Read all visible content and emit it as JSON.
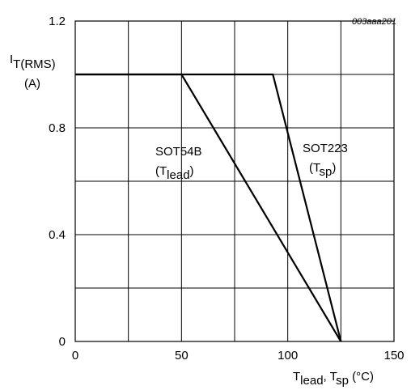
{
  "chart_data": {
    "type": "line",
    "document_code": "003aaa201",
    "ylabel": {
      "main": "I",
      "sub": "T(RMS)",
      "unit": "(A)"
    },
    "xlabel": {
      "part1_main": "T",
      "part1_sub": "lead",
      "separator": ", ",
      "part2_main": "T",
      "part2_sub": "sp",
      "unit": " (°C)"
    },
    "xlim": [
      0,
      150
    ],
    "ylim": [
      0,
      1.2
    ],
    "x_ticks": [
      0,
      50,
      100,
      150
    ],
    "x_tick_labels": [
      "0",
      "50",
      "100",
      "150"
    ],
    "y_ticks": [
      0,
      0.4,
      0.8,
      1.2
    ],
    "y_tick_labels": [
      "0",
      "0.4",
      "0.8",
      "1.2"
    ],
    "x_grid": [
      0,
      25,
      50,
      75,
      100,
      125,
      150
    ],
    "y_grid": [
      0,
      0.2,
      0.4,
      0.6,
      0.8,
      1.0,
      1.2
    ],
    "grid": true,
    "series": [
      {
        "name": "SOT54B (Tlead)",
        "label_main": "SOT54B",
        "label_paren_open": "(T",
        "label_sub": "lead",
        "label_paren_close": ")",
        "x": [
          0,
          50,
          125
        ],
        "y": [
          1.0,
          1.0,
          0
        ]
      },
      {
        "name": "SOT223 (Tsp)",
        "label_main": "SOT223",
        "label_paren_open": "(T",
        "label_sub": "sp",
        "label_paren_close": ")",
        "x": [
          0,
          93,
          125
        ],
        "y": [
          1.0,
          1.0,
          0
        ]
      }
    ]
  }
}
